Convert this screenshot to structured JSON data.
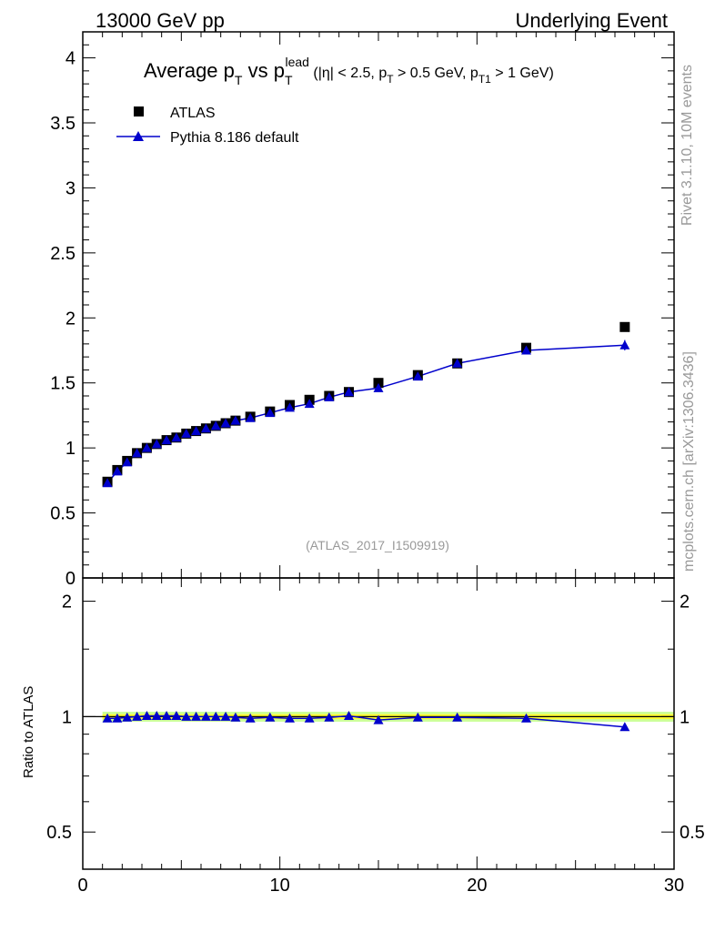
{
  "header": {
    "left": "13000 GeV pp",
    "right": "Underlying Event"
  },
  "side": {
    "rivet": "Rivet 3.1.10,  10M events",
    "mcplots": "mcplots.cern.ch [arXiv:1306.3436]"
  },
  "colors": {
    "data": "#000000",
    "mc": "#0000cc",
    "band_inner": "#ffff33",
    "band_outer": "#ccff99"
  },
  "chart_data": {
    "type": "scatter",
    "title_parts": {
      "a": "Average p",
      "a_sub": "T",
      "b": " vs p",
      "b_sub": "T",
      "b_sup": "lead",
      "c1": " (|η| < 2.5, p",
      "c1_sub": "T",
      "c2": " > 0.5 GeV, p",
      "c2_sub": "T1",
      "c3": " > 1 GeV)"
    },
    "watermark": "(ATLAS_2017_I1509919)",
    "xlim": [
      0,
      30
    ],
    "ylim": [
      0,
      4.2
    ],
    "ratio_ylim": [
      0.4,
      2.3
    ],
    "ratio_ylabel": "Ratio to ATLAS",
    "x_ticks": [
      "0",
      "10",
      "20",
      "30"
    ],
    "y_ticks": [
      "0",
      "0.5",
      "1",
      "1.5",
      "2",
      "2.5",
      "3",
      "3.5",
      "4"
    ],
    "ratio_ticks": [
      "0.5",
      "1",
      "2"
    ],
    "legend": [
      {
        "name": "ATLAS",
        "marker": "square"
      },
      {
        "name": "Pythia 8.186 default",
        "marker": "triangle-line"
      }
    ],
    "x": [
      1.25,
      1.75,
      2.25,
      2.75,
      3.25,
      3.75,
      4.25,
      4.75,
      5.25,
      5.75,
      6.25,
      6.75,
      7.25,
      7.75,
      8.5,
      9.5,
      10.5,
      11.5,
      12.5,
      13.5,
      15.0,
      17.0,
      19.0,
      22.5,
      27.5
    ],
    "series": [
      {
        "name": "ATLAS",
        "values": [
          0.74,
          0.83,
          0.9,
          0.96,
          1.0,
          1.03,
          1.06,
          1.08,
          1.11,
          1.13,
          1.15,
          1.17,
          1.19,
          1.21,
          1.24,
          1.28,
          1.33,
          1.37,
          1.4,
          1.43,
          1.5,
          1.56,
          1.65,
          1.77,
          1.93
        ]
      },
      {
        "name": "Pythia 8.186 default",
        "values": [
          0.73,
          0.82,
          0.89,
          0.96,
          1.0,
          1.03,
          1.06,
          1.08,
          1.11,
          1.13,
          1.15,
          1.17,
          1.19,
          1.21,
          1.23,
          1.27,
          1.31,
          1.34,
          1.39,
          1.43,
          1.46,
          1.55,
          1.65,
          1.75,
          1.79
        ]
      }
    ],
    "ratio": [
      0.99,
      0.99,
      0.995,
      1.0,
      1.005,
      1.005,
      1.005,
      1.005,
      1.0,
      1.0,
      1.0,
      1.0,
      1.0,
      0.995,
      0.99,
      0.995,
      0.99,
      0.99,
      0.995,
      1.005,
      0.98,
      0.995,
      0.995,
      0.99,
      0.94
    ]
  }
}
